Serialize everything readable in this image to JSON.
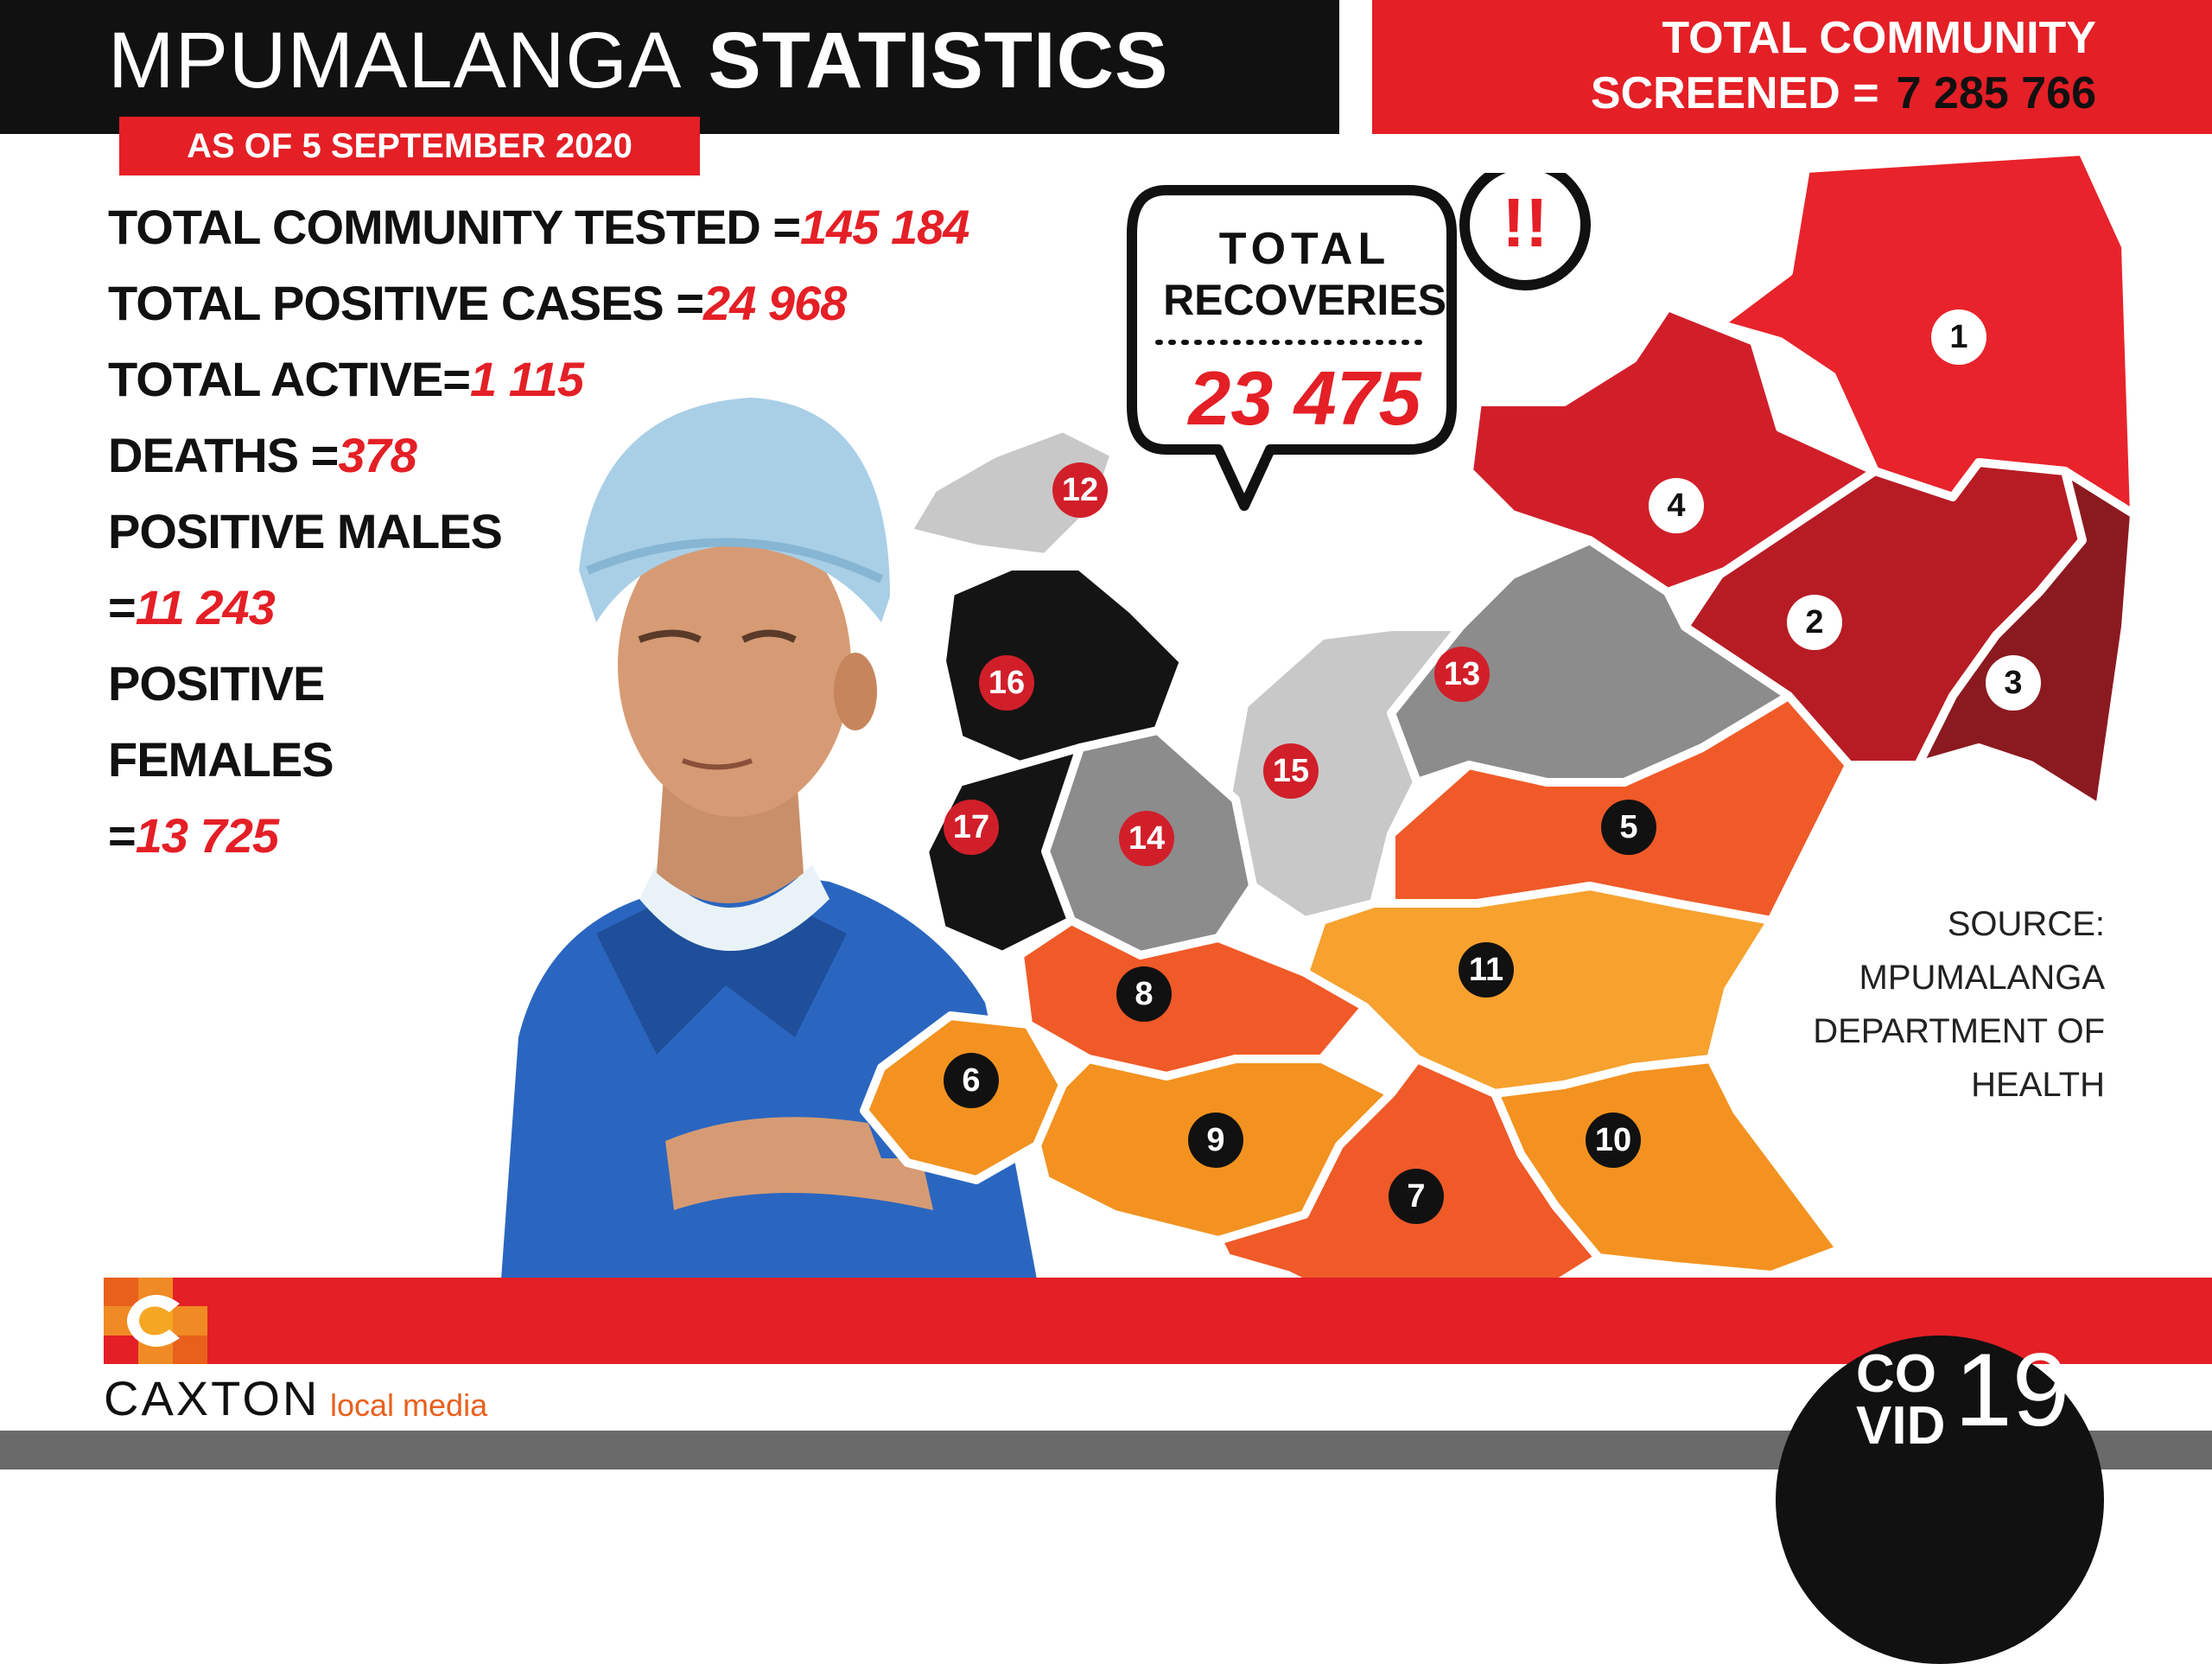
{
  "header": {
    "title_light": "MPUMALANGA",
    "title_bold": "STATISTICS",
    "date": "AS OF 5 SEPTEMBER 2020"
  },
  "screened": {
    "line1": "TOTAL COMMUNITY",
    "line2_label": "SCREENED =",
    "line2_value": "7 285 766"
  },
  "stats": [
    {
      "label": "TOTAL COMMUNITY TESTED =",
      "value": "145 184"
    },
    {
      "label": "TOTAL POSITIVE CASES =",
      "value": "24 968"
    },
    {
      "label": "TOTAL ACTIVE=",
      "value": "1 115"
    },
    {
      "label": "DEATHS =",
      "value": "378"
    },
    {
      "label": "POSITIVE MALES",
      "value": ""
    },
    {
      "label": "=",
      "value": "11 243"
    },
    {
      "label": "POSITIVE",
      "value": ""
    },
    {
      "label": "FEMALES",
      "value": ""
    },
    {
      "label": "=",
      "value": "13 725"
    }
  ],
  "recoveries": {
    "label1": "TOTAL",
    "label2": "RECOVERIES",
    "value": "23 475",
    "alert": "!!"
  },
  "source": {
    "line1": "SOURCE:",
    "line2": "MPUMALANGA",
    "line3": "DEPARTMENT OF",
    "line4": "HEALTH"
  },
  "map": {
    "regions": [
      "1",
      "2",
      "3",
      "4",
      "5",
      "6",
      "7",
      "8",
      "9",
      "10",
      "11",
      "12",
      "13",
      "14",
      "15",
      "16",
      "17"
    ],
    "colors": {
      "red": "#e8232b",
      "dark_red": "#b71c25",
      "maroon": "#8b1a20",
      "orange": "#f05a28",
      "light_orange": "#f7a12f",
      "amber": "#f39220",
      "black": "#141414",
      "gray": "#8c8c8c",
      "light_gray": "#c8c8c8"
    }
  },
  "brand": {
    "caxton": "CAXTON",
    "caxton_sub": "local media",
    "covid_top": "CO",
    "covid_bottom": "VID",
    "covid_num": "19"
  }
}
